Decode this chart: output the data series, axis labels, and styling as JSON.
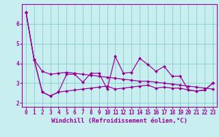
{
  "x": [
    0,
    1,
    2,
    3,
    4,
    5,
    6,
    7,
    8,
    9,
    10,
    11,
    12,
    13,
    14,
    15,
    16,
    17,
    18,
    19,
    20,
    21,
    22,
    23
  ],
  "line1": [
    6.6,
    4.2,
    3.6,
    3.45,
    3.5,
    3.55,
    3.5,
    3.45,
    3.4,
    3.35,
    3.3,
    3.25,
    3.2,
    3.15,
    3.1,
    3.1,
    3.05,
    3.0,
    2.95,
    2.9,
    2.85,
    2.8,
    2.75,
    2.7
  ],
  "line2": [
    6.6,
    4.2,
    2.55,
    2.35,
    2.55,
    3.45,
    3.45,
    3.05,
    3.5,
    3.5,
    2.7,
    4.35,
    3.5,
    3.55,
    4.25,
    3.95,
    3.6,
    3.85,
    3.35,
    3.35,
    2.65,
    2.6,
    2.65,
    3.0
  ],
  "line3": [
    6.6,
    4.2,
    2.55,
    2.35,
    2.55,
    2.6,
    2.65,
    2.7,
    2.75,
    2.8,
    2.85,
    2.7,
    2.75,
    2.8,
    2.85,
    2.9,
    2.75,
    2.8,
    2.75,
    2.75,
    2.65,
    2.6,
    2.65,
    3.0
  ],
  "line_color": "#990099",
  "background_color": "#c8eef0",
  "grid_color": "#88cccc",
  "xlabel": "Windchill (Refroidissement éolien,°C)",
  "xlim": [
    -0.5,
    23.5
  ],
  "ylim": [
    1.8,
    7.0
  ],
  "yticks": [
    2,
    3,
    4,
    5,
    6
  ],
  "xticks": [
    0,
    1,
    2,
    3,
    4,
    5,
    6,
    7,
    8,
    9,
    10,
    11,
    12,
    13,
    14,
    15,
    16,
    17,
    18,
    19,
    20,
    21,
    22,
    23
  ],
  "marker": "D",
  "markersize": 2.5,
  "linewidth": 0.9,
  "xlabel_fontsize": 6.5,
  "tick_fontsize": 5.5
}
